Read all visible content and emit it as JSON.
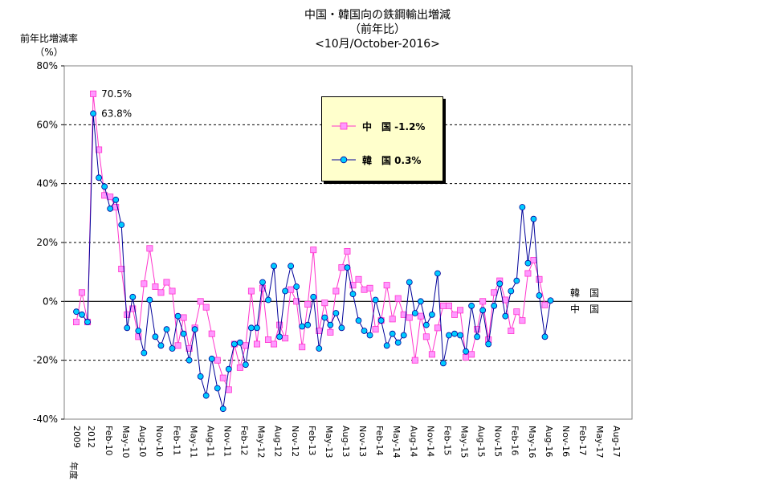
{
  "title_lines": [
    "中国・韓国向の鉄鋼輸出増減",
    "（前年比）",
    "<10月/October-2016>"
  ],
  "ylabel_lines": [
    "前年比増減率",
    "（%）"
  ],
  "legend": {
    "china_label": "中　国 -1.2%",
    "korea_label": "韓　国 0.3%"
  },
  "colors": {
    "china": "#ff33cc",
    "china_fill": "#ff99ff",
    "korea": "#000099",
    "korea_fill": "#00ccff"
  },
  "chart_data": {
    "type": "line",
    "title": "中国・韓国向の鉄鋼輸出増減",
    "ylabel": "前年比増減率（%）",
    "ylim": [
      -40,
      80
    ],
    "yticks": [
      "80%",
      "60%",
      "40%",
      "20%",
      "0%",
      "-20%",
      "-40%"
    ],
    "xticks": [
      "2009",
      "2012",
      "Feb-10",
      "May-10",
      "Aug-10",
      "Nov-10",
      "Feb-11",
      "May-11",
      "Aug-11",
      "Nov-11",
      "Feb-12",
      "May-12",
      "Aug-12",
      "Nov-12",
      "Feb-13",
      "May-13",
      "Aug-13",
      "Nov-13",
      "Feb-14",
      "May-14",
      "Aug-14",
      "Nov-14",
      "Feb-15",
      "May-15",
      "Aug-15",
      "Nov-15",
      "Feb-16",
      "May-16",
      "Aug-16",
      "Nov-16",
      "Feb-17",
      "May-17",
      "Aug-17"
    ],
    "xaxis_suffix": "年度",
    "grid": "horizontal dashed",
    "annotations": [
      {
        "text": "70.5%",
        "series": "中国",
        "index": 3
      },
      {
        "text": "63.8%",
        "series": "韓国",
        "index": 3
      }
    ],
    "end_labels": [
      "韓　国",
      "中　国"
    ],
    "series": [
      {
        "name": "中国",
        "values": [
          -7,
          3,
          -7,
          70.5,
          51.5,
          36,
          35.5,
          32,
          11,
          -4.5,
          -2.5,
          -12,
          6,
          18,
          5,
          3,
          6.5,
          3.5,
          -15,
          -5.5,
          -16,
          -9,
          0,
          -2,
          -11,
          -20,
          -26,
          -30,
          -14.5,
          -22.5,
          -15,
          3.5,
          -14.5,
          4.5,
          -13,
          -14.5,
          -8,
          -12.5,
          4,
          0,
          -15.5,
          -1,
          17.5,
          -10,
          -0.5,
          -10.5,
          3.5,
          11.5,
          17,
          5.5,
          7.5,
          4,
          4.5,
          -9.5,
          -6.5,
          5.5,
          -6,
          1,
          -4.5,
          -5.5,
          -20,
          -5,
          -12,
          -18,
          -9,
          -1.5,
          -1.5,
          -4.5,
          -3,
          -19,
          -18,
          -9.5,
          0,
          -13,
          3,
          7,
          0.5,
          -10,
          -3.5,
          -6.5,
          9.5,
          14,
          7.5,
          -1.2
        ]
      },
      {
        "name": "韓国",
        "values": [
          -3.5,
          -4.5,
          -7,
          63.8,
          42,
          39,
          31.5,
          34.5,
          26,
          -9,
          1.5,
          -10,
          -17.5,
          0.5,
          -12,
          -15,
          -9.5,
          -16,
          -5,
          -11,
          -20,
          -9.5,
          -25.5,
          -32,
          -19.5,
          -29.5,
          -36.5,
          -23,
          -14.5,
          -14,
          -21.5,
          -9,
          -9,
          6.5,
          0.5,
          12,
          -12,
          3.5,
          12,
          5,
          -8.5,
          -8,
          1.5,
          -16,
          -5.5,
          -8,
          -4,
          -9,
          11.5,
          2.5,
          -6.5,
          -10,
          -11.5,
          0.5,
          -6.5,
          -15,
          -11,
          -14,
          -11.5,
          6.5,
          -4,
          0,
          -8,
          -4.5,
          9.5,
          -21,
          -11.5,
          -11,
          -11.5,
          -17,
          -1.5,
          -12,
          -3,
          -14.5,
          -1.5,
          6,
          -5,
          3.5,
          7,
          32,
          13,
          28,
          2,
          -12,
          0.3
        ]
      }
    ]
  }
}
